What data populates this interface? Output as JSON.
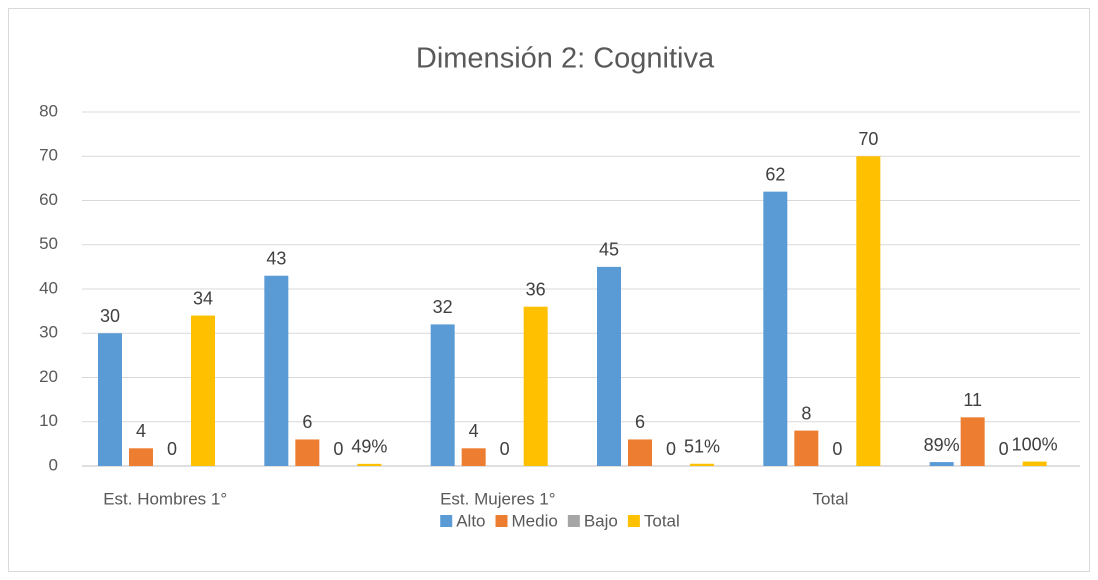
{
  "chart_data": {
    "type": "bar",
    "title": "Dimensión 2: Cognitiva",
    "categories": [
      "Est. Hombres 1°",
      null,
      "Est. Mujeres 1°",
      null,
      "Total",
      null
    ],
    "series": [
      {
        "name": "Alto",
        "color": "#5b9bd5",
        "values": [
          30,
          43,
          32,
          45,
          62,
          0.89
        ],
        "value_labels": [
          "30",
          "43",
          "32",
          "45",
          "62",
          "89%"
        ]
      },
      {
        "name": "Medio",
        "color": "#ed7d31",
        "values": [
          4,
          6,
          4,
          6,
          8,
          11
        ]
      },
      {
        "name": "Bajo",
        "color": "#a5a5a5",
        "values": [
          0,
          0,
          0,
          0,
          0,
          0
        ]
      },
      {
        "name": "Total",
        "color": "#ffc000",
        "values": [
          34,
          0.49,
          36,
          0.51,
          70,
          1
        ],
        "value_labels": [
          "34",
          "49%",
          "36",
          "51%",
          "70",
          "100%"
        ]
      }
    ],
    "ylim": [
      0,
      80
    ],
    "yticks": [
      0,
      10,
      20,
      30,
      40,
      50,
      60,
      70,
      80
    ],
    "grid": true,
    "legend": "bottom"
  }
}
